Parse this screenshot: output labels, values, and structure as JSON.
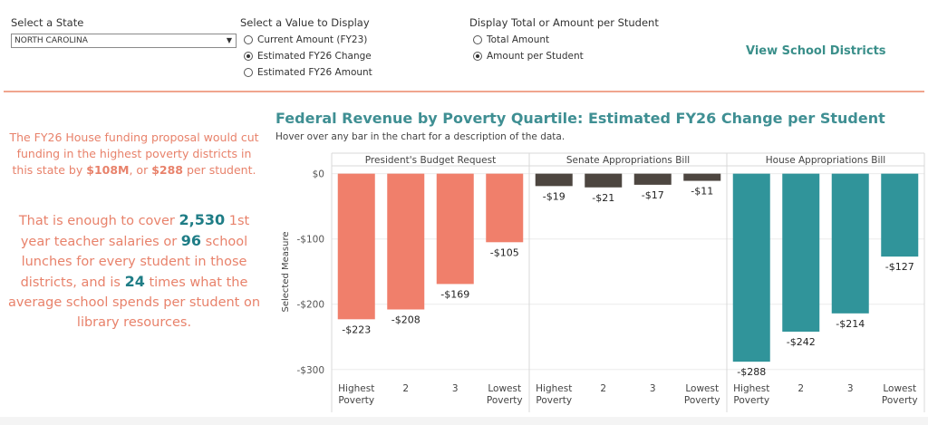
{
  "controls": {
    "state": {
      "title": "Select a State",
      "value": "NORTH CAROLINA"
    },
    "value_display": {
      "title": "Select a Value to Display",
      "options": [
        {
          "label": "Current Amount (FY23)",
          "selected": false
        },
        {
          "label": "Estimated FY26 Change",
          "selected": true
        },
        {
          "label": "Estimated FY26 Amount",
          "selected": false
        }
      ]
    },
    "total_display": {
      "title": "Display Total or Amount per Student",
      "options": [
        {
          "label": "Total Amount",
          "selected": false
        },
        {
          "label": "Amount per Student",
          "selected": true
        }
      ]
    },
    "view_link": "View School Districts"
  },
  "summary": {
    "p1_a": "The FY26 House funding proposal would cut funding in the highest poverty districts in this state by ",
    "p1_amount": "$108M",
    "p1_b": ", or ",
    "p1_per": "$288",
    "p1_c": " per student.",
    "p2_a": "That is enough to cover ",
    "p2_salaries": "2,530",
    "p2_b": " 1st year teacher salaries or ",
    "p2_lunches": "96",
    "p2_c": " school lunches for every student in those districts, and is ",
    "p2_times": "24",
    "p2_d": " times what the average school spends per student on library resources."
  },
  "colors": {
    "presidents": "#f07f6b",
    "senate": "#4d4640",
    "house": "#30949a",
    "accent_teal": "#1f7d86",
    "accent_salmon": "#e8826b"
  },
  "chart_data": {
    "type": "bar",
    "title": "Federal Revenue by Poverty Quartile: Estimated FY26 Change per Student",
    "subtitle": "Hover over any bar in the chart for a description of the data.",
    "ylabel": "Selected Measure",
    "ylim": [
      -310,
      12
    ],
    "yticks": [
      0,
      -100,
      -200,
      -300
    ],
    "ytick_labels": [
      "$0",
      "-$100",
      "-$200",
      "-$300"
    ],
    "grid": true,
    "categories": [
      [
        "Highest",
        "Poverty"
      ],
      [
        "2"
      ],
      [
        "3"
      ],
      [
        "Lowest",
        "Poverty"
      ]
    ],
    "panels": [
      {
        "name": "President's Budget Request",
        "color_key": "presidents",
        "values": [
          -223,
          -208,
          -169,
          -105
        ],
        "labels": [
          "-$223",
          "-$208",
          "-$169",
          "-$105"
        ]
      },
      {
        "name": "Senate Appropriations Bill",
        "color_key": "senate",
        "values": [
          -19,
          -21,
          -17,
          -11
        ],
        "labels": [
          "-$19",
          "-$21",
          "-$17",
          "-$11"
        ]
      },
      {
        "name": "House Appropriations Bill",
        "color_key": "house",
        "values": [
          -288,
          -242,
          -214,
          -127
        ],
        "labels": [
          "-$288",
          "-$242",
          "-$214",
          "-$127"
        ]
      }
    ]
  }
}
